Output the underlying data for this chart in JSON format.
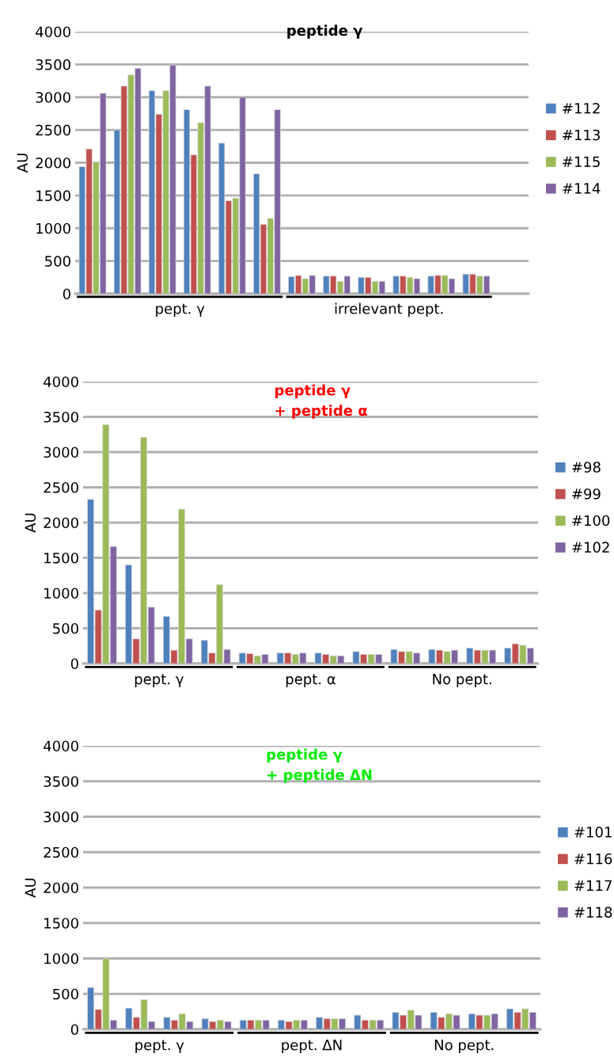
{
  "chart_data": [
    {
      "type": "bar",
      "title": "peptide γ",
      "ylabel": "AU",
      "categories": [
        null,
        null,
        null,
        null,
        null,
        null,
        null,
        null,
        null,
        null,
        null,
        null,
        null
      ],
      "series": [
        {
          "name": "#112",
          "color": "#4f81bd",
          "values": [
            1940,
            2500,
            3100,
            2810,
            2300,
            1830,
            260,
            270,
            250,
            270,
            270,
            300,
            null
          ]
        },
        {
          "name": "#113",
          "color": "#c0504d",
          "values": [
            2210,
            3170,
            2740,
            2120,
            1420,
            1060,
            280,
            270,
            250,
            270,
            280,
            300,
            null
          ]
        },
        {
          "name": "#115",
          "color": "#9bbb59",
          "values": [
            2010,
            3340,
            3100,
            2610,
            1460,
            1150,
            230,
            190,
            190,
            250,
            280,
            270,
            null
          ]
        },
        {
          "name": "#114",
          "color": "#8064a2",
          "values": [
            3060,
            3440,
            3490,
            3170,
            3000,
            2810,
            280,
            270,
            190,
            230,
            230,
            270,
            null
          ]
        }
      ],
      "ylim": [
        0,
        4000
      ],
      "yticks": [
        0,
        500,
        1000,
        1500,
        2000,
        2500,
        3000,
        3500,
        4000
      ],
      "grid": "y",
      "legend": "right",
      "annotations": [
        "pept. γ",
        "irrelevant pept."
      ]
    },
    {
      "type": "bar",
      "title": "peptide γ\n+ peptide α",
      "ylabel": "AU",
      "categories": [
        null,
        null,
        null,
        null,
        null,
        null,
        null,
        null,
        null,
        null,
        null,
        null
      ],
      "series": [
        {
          "name": "#98",
          "color": "#4f81bd",
          "values": [
            2330,
            1400,
            670,
            330,
            150,
            150,
            150,
            170,
            200,
            200,
            220,
            220
          ]
        },
        {
          "name": "#99",
          "color": "#c0504d",
          "values": [
            760,
            350,
            190,
            150,
            140,
            150,
            130,
            130,
            170,
            190,
            190,
            280
          ]
        },
        {
          "name": "#100",
          "color": "#9bbb59",
          "values": [
            3390,
            3210,
            2190,
            1120,
            110,
            130,
            110,
            130,
            170,
            170,
            190,
            260
          ]
        },
        {
          "name": "#102",
          "color": "#8064a2",
          "values": [
            1660,
            800,
            350,
            200,
            130,
            150,
            110,
            130,
            150,
            190,
            190,
            220
          ]
        }
      ],
      "ylim": [
        0,
        4000
      ],
      "yticks": [
        0,
        500,
        1000,
        1500,
        2000,
        2500,
        3000,
        3500,
        4000
      ],
      "grid": "y",
      "legend": "right",
      "annotations": [
        "pept. γ",
        "pept. α",
        "No pept."
      ]
    },
    {
      "type": "bar",
      "title": "peptide γ\n+ peptide ΔN",
      "ylabel": "AU",
      "categories": [
        null,
        null,
        null,
        null,
        null,
        null,
        null,
        null,
        null,
        null,
        null,
        null
      ],
      "series": [
        {
          "name": "#101",
          "color": "#4f81bd",
          "values": [
            590,
            300,
            170,
            150,
            130,
            130,
            170,
            200,
            240,
            240,
            220,
            290
          ]
        },
        {
          "name": "#116",
          "color": "#c0504d",
          "values": [
            280,
            170,
            130,
            110,
            130,
            110,
            150,
            130,
            200,
            170,
            200,
            240
          ]
        },
        {
          "name": "#117",
          "color": "#9bbb59",
          "values": [
            1000,
            420,
            220,
            130,
            130,
            130,
            150,
            130,
            270,
            220,
            200,
            290
          ]
        },
        {
          "name": "#118",
          "color": "#8064a2",
          "values": [
            130,
            110,
            110,
            110,
            130,
            130,
            150,
            130,
            200,
            200,
            220,
            240
          ]
        }
      ],
      "ylim": [
        0,
        4000
      ],
      "yticks": [
        0,
        500,
        1000,
        1500,
        2000,
        2500,
        3000,
        3500,
        4000
      ],
      "grid": "y",
      "legend": "right",
      "annotations": [
        "pept. γ",
        "pept. ΔN",
        "No pept."
      ]
    }
  ]
}
